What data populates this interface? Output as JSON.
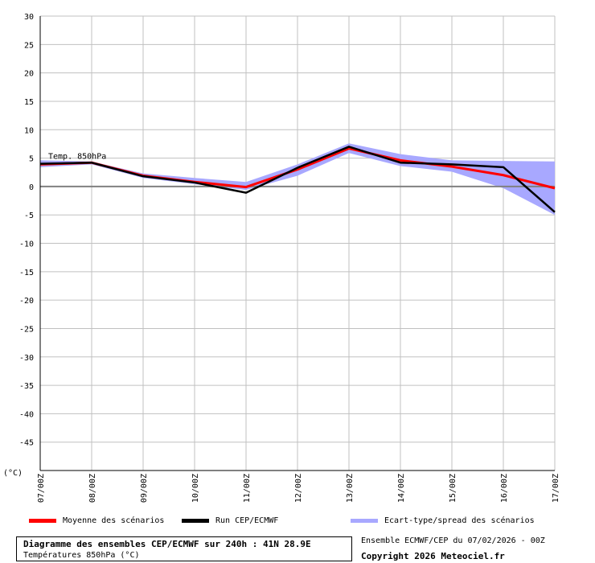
{
  "chart_data": {
    "type": "line",
    "ylabel_unit": "(°C)",
    "ylim": [
      -50,
      30
    ],
    "y_ticks": [
      30,
      25,
      20,
      15,
      10,
      5,
      0,
      -5,
      -10,
      -15,
      -20,
      -25,
      -30,
      -35,
      -40,
      -45
    ],
    "grid": true,
    "x": [
      "07/00Z",
      "08/00Z",
      "09/00Z",
      "10/00Z",
      "11/00Z",
      "12/00Z",
      "13/00Z",
      "14/00Z",
      "15/00Z",
      "16/00Z",
      "17/00Z"
    ],
    "annotation": "Temp. 850hPa",
    "series": [
      {
        "name": "Moyenne des scénarios",
        "color": "#ff0000",
        "values": [
          3.9,
          4.2,
          1.9,
          0.8,
          -0.1,
          3.0,
          6.7,
          4.6,
          3.5,
          2.0,
          -0.3
        ]
      },
      {
        "name": "Run CEP/ECMWF",
        "color": "#000000",
        "values": [
          4.0,
          4.2,
          1.8,
          0.7,
          -1.1,
          3.3,
          7.0,
          4.2,
          3.9,
          3.4,
          -4.5
        ]
      }
    ],
    "spread": {
      "name": "Ecart-type/spread des scénarios",
      "color": "#a8a8ff",
      "upper": [
        4.6,
        4.4,
        2.3,
        1.5,
        0.8,
        3.9,
        7.6,
        5.7,
        4.6,
        4.5,
        4.4
      ],
      "lower": [
        3.4,
        3.9,
        1.5,
        0.4,
        -0.6,
        1.9,
        5.9,
        3.6,
        2.6,
        -0.3,
        -5.0
      ]
    }
  },
  "legend": {
    "mean": "Moyenne des scénarios",
    "run": "Run CEP/ECMWF",
    "spread": "Ecart-type/spread des scénarios"
  },
  "colors": {
    "mean": "#ff0000",
    "run": "#000000",
    "spread": "#a8a8ff",
    "grid": "#c0c0c0"
  },
  "footer": {
    "title": "Diagramme des ensembles CEP/ECMWF sur 240h : 41N 28.9E",
    "subtitle": "Températures 850hPa (°C)",
    "run_info": "Ensemble ECMWF/CEP du 07/02/2026 - 00Z",
    "copyright": "Copyright 2026 Meteociel.fr"
  }
}
